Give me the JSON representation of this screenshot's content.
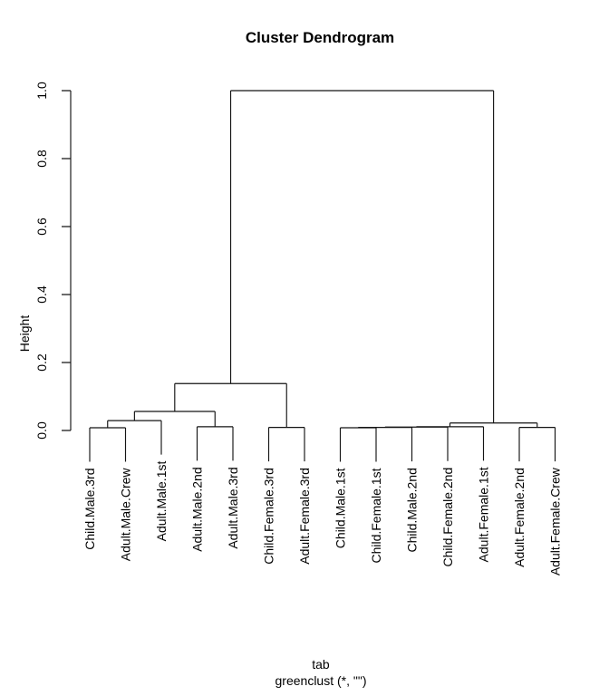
{
  "chart_data": {
    "type": "dendrogram",
    "title": "Cluster Dendrogram",
    "ylabel": "Height",
    "xlabel_lines": [
      "tab",
      "greenclust (*, \"\")"
    ],
    "ylim": [
      0,
      1
    ],
    "grid": false,
    "hang": 0.1,
    "yticks": [
      {
        "value": 0.0,
        "label": "0.0"
      },
      {
        "value": 0.2,
        "label": "0.2"
      },
      {
        "value": 0.4,
        "label": "0.4"
      },
      {
        "value": 0.6,
        "label": "0.6"
      },
      {
        "value": 0.8,
        "label": "0.8"
      },
      {
        "value": 1.0,
        "label": "1.0"
      }
    ],
    "leaves": [
      "Child.Male.3rd",
      "Adult.Male.Crew",
      "Adult.Male.1st",
      "Adult.Male.2nd",
      "Adult.Male.3rd",
      "Child.Female.3rd",
      "Adult.Female.3rd",
      "Child.Male.1st",
      "Child.Female.1st",
      "Child.Male.2nd",
      "Child.Female.2nd",
      "Adult.Female.1st",
      "Adult.Female.2nd",
      "Adult.Female.Crew"
    ],
    "line_color": "#141414",
    "root": {
      "h": 1.0,
      "c": [
        {
          "h": 0.138,
          "c": [
            {
              "h": 0.056,
              "c": [
                {
                  "h": 0.029,
                  "c": [
                    {
                      "h": 0.008,
                      "c": [
                        {
                          "leaf": 0
                        },
                        {
                          "leaf": 1
                        }
                      ]
                    },
                    {
                      "leaf": 2
                    }
                  ]
                },
                {
                  "h": 0.011,
                  "c": [
                    {
                      "leaf": 3
                    },
                    {
                      "leaf": 4
                    }
                  ]
                }
              ]
            },
            {
              "h": 0.009,
              "c": [
                {
                  "leaf": 5
                },
                {
                  "leaf": 6
                }
              ]
            }
          ]
        },
        {
          "h": 0.022,
          "c": [
            {
              "h": 0.011,
              "c": [
                {
                  "h": 0.01,
                  "c": [
                    {
                      "h": 0.009,
                      "c": [
                        {
                          "h": 0.008,
                          "c": [
                            {
                              "leaf": 7
                            },
                            {
                              "leaf": 8
                            }
                          ]
                        },
                        {
                          "leaf": 9
                        }
                      ]
                    },
                    {
                      "leaf": 10
                    }
                  ]
                },
                {
                  "leaf": 11
                }
              ]
            },
            {
              "h": 0.009,
              "c": [
                {
                  "leaf": 12
                },
                {
                  "leaf": 13
                }
              ]
            }
          ]
        }
      ]
    }
  }
}
